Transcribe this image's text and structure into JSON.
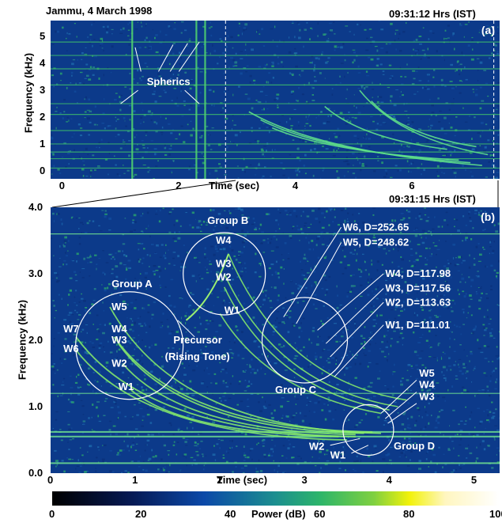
{
  "header_a": {
    "location_date": "Jammu, 4 March 1998",
    "time_label": "09:31:12 Hrs (IST)",
    "panel": "(a)"
  },
  "header_b": {
    "time_label": "09:31:15 Hrs (IST)",
    "panel": "(b)"
  },
  "colorbar": {
    "label": "Power (dB)",
    "ticks": [
      "0",
      "20",
      "40",
      "60",
      "80",
      "100"
    ],
    "colors": [
      "#000000",
      "#061a55",
      "#0b49a8",
      "#1c8f8f",
      "#2db56a",
      "#7fd040",
      "#f2f20a",
      "#ffffff"
    ]
  },
  "chart_data": [
    {
      "type": "heatmap",
      "panel": "(a)",
      "title": "",
      "xlabel": "Time (sec)",
      "ylabel": "Frequency (kHz)",
      "xlim": [
        -0.2,
        7.5
      ],
      "ylim": [
        -0.3,
        5.6
      ],
      "xticks": [
        "0",
        "2",
        "4",
        "6"
      ],
      "yticks": [
        "0",
        "1",
        "2",
        "3",
        "4",
        "5"
      ],
      "annotations": [
        "Spherics"
      ],
      "spherics_times_sec": [
        1.2,
        2.3,
        2.45
      ]
    },
    {
      "type": "heatmap",
      "panel": "(b)",
      "title": "",
      "xlabel": "Time (sec)",
      "ylabel": "Frequency (kHz)",
      "xlim": [
        0,
        5.3
      ],
      "ylim": [
        0,
        4.0
      ],
      "xticks": [
        "0",
        "1",
        "2",
        "3",
        "4",
        "5"
      ],
      "yticks": [
        "0.0",
        "1.0",
        "2.0",
        "3.0",
        "4.0"
      ],
      "groups": [
        "Group A",
        "Group B",
        "Group C",
        "Group D"
      ],
      "precursor_label": [
        "Precursor",
        "(Rising Tone)"
      ],
      "group_a_labels": [
        "W7",
        "W6",
        "W5",
        "W4",
        "W3",
        "W2",
        "W1"
      ],
      "group_b_labels": [
        "W4",
        "W3",
        "W2",
        "W1"
      ],
      "group_c_labels": [
        "W6, D=252.65",
        "W5, D=248.62",
        "W4, D=117.98",
        "W3, D=117.56",
        "W2, D=113.63",
        "W1, D=111.01"
      ],
      "group_d_labels": [
        "W5",
        "W4",
        "W3",
        "W2",
        "W1"
      ]
    }
  ]
}
